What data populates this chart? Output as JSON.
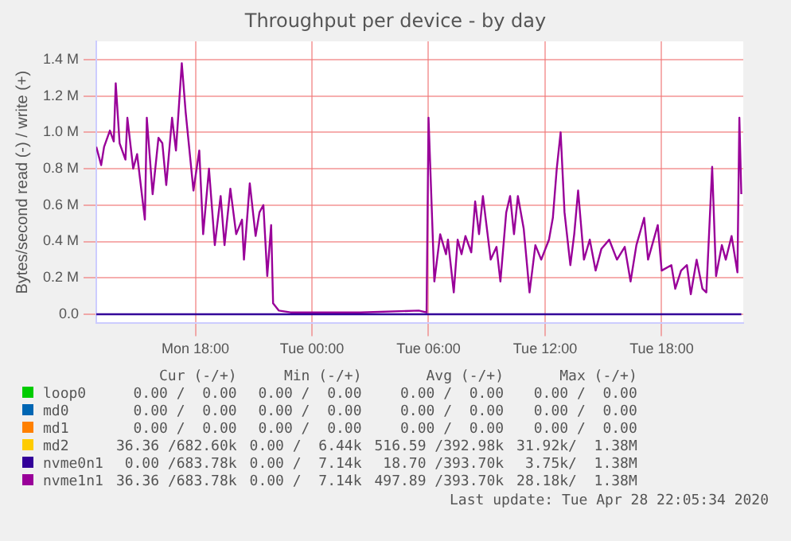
{
  "chart_data": {
    "type": "line",
    "title": "Throughput per device - by day",
    "ylabel": "Bytes/second read (-) / write (+)",
    "xlim": [
      "2020-04-27T12:54",
      "2020-04-28T22:12"
    ],
    "xticks": [
      {
        "value": "2020-04-27T18:00",
        "label": "Mon 18:00"
      },
      {
        "value": "2020-04-28T00:00",
        "label": "Tue 00:00"
      },
      {
        "value": "2020-04-28T06:00",
        "label": "Tue 06:00"
      },
      {
        "value": "2020-04-28T12:00",
        "label": "Tue 12:00"
      },
      {
        "value": "2020-04-28T18:00",
        "label": "Tue 18:00"
      }
    ],
    "ylim": [
      -50000,
      1500000
    ],
    "yticks": [
      {
        "value": 0,
        "label": "0.0"
      },
      {
        "value": 200000,
        "label": "0.2 M"
      },
      {
        "value": 400000,
        "label": "0.4 M"
      },
      {
        "value": 600000,
        "label": "0.6 M"
      },
      {
        "value": 800000,
        "label": "0.8 M"
      },
      {
        "value": 1000000,
        "label": "1.0 M"
      },
      {
        "value": 1200000,
        "label": "1.2 M"
      },
      {
        "value": 1400000,
        "label": "1.4 M"
      }
    ],
    "grid": true,
    "legend": "bottom",
    "marker": "none",
    "line_style": "solid",
    "series": [
      {
        "name": "loop0",
        "color": "#00cc00"
      },
      {
        "name": "md0",
        "color": "#0066b3"
      },
      {
        "name": "md1",
        "color": "#ff8000"
      },
      {
        "name": "md2",
        "color": "#ffcc00"
      },
      {
        "name": "nvme0n1",
        "color": "#330099",
        "x": [
          "2020-04-27T12:54",
          "2020-04-28T22:06"
        ],
        "values": [
          0,
          0
        ]
      },
      {
        "name": "nvme1n1",
        "color": "#990099",
        "x": [
          "2020-04-27T12:54",
          "2020-04-27T13:09",
          "2020-04-27T13:18",
          "2020-04-27T13:36",
          "2020-04-27T13:48",
          "2020-04-27T13:54",
          "2020-04-27T14:06",
          "2020-04-27T14:24",
          "2020-04-27T14:30",
          "2020-04-27T14:48",
          "2020-04-27T15:00",
          "2020-04-27T15:24",
          "2020-04-27T15:30",
          "2020-04-27T15:48",
          "2020-04-27T16:06",
          "2020-04-27T16:18",
          "2020-04-27T16:30",
          "2020-04-27T16:48",
          "2020-04-27T17:00",
          "2020-04-27T17:18",
          "2020-04-27T17:30",
          "2020-04-27T17:54",
          "2020-04-27T18:12",
          "2020-04-27T18:24",
          "2020-04-27T18:42",
          "2020-04-27T19:00",
          "2020-04-27T19:18",
          "2020-04-27T19:30",
          "2020-04-27T19:48",
          "2020-04-27T20:06",
          "2020-04-27T20:24",
          "2020-04-27T20:30",
          "2020-04-27T20:48",
          "2020-04-27T21:06",
          "2020-04-27T21:18",
          "2020-04-27T21:30",
          "2020-04-27T21:42",
          "2020-04-27T21:54",
          "2020-04-27T22:00",
          "2020-04-27T22:18",
          "2020-04-27T22:54",
          "2020-04-28T02:30",
          "2020-04-28T05:30",
          "2020-04-28T05:54",
          "2020-04-28T06:00",
          "2020-04-28T06:18",
          "2020-04-28T06:36",
          "2020-04-28T06:54",
          "2020-04-28T07:00",
          "2020-04-28T07:18",
          "2020-04-28T07:30",
          "2020-04-28T07:42",
          "2020-04-28T07:54",
          "2020-04-28T08:12",
          "2020-04-28T08:24",
          "2020-04-28T08:36",
          "2020-04-28T08:48",
          "2020-04-28T09:12",
          "2020-04-28T09:30",
          "2020-04-28T09:42",
          "2020-04-28T10:00",
          "2020-04-28T10:12",
          "2020-04-28T10:24",
          "2020-04-28T10:36",
          "2020-04-28T10:54",
          "2020-04-28T11:12",
          "2020-04-28T11:30",
          "2020-04-28T11:48",
          "2020-04-28T12:12",
          "2020-04-28T12:24",
          "2020-04-28T12:36",
          "2020-04-28T12:48",
          "2020-04-28T13:00",
          "2020-04-28T13:18",
          "2020-04-28T13:30",
          "2020-04-28T13:42",
          "2020-04-28T14:00",
          "2020-04-28T14:18",
          "2020-04-28T14:36",
          "2020-04-28T14:54",
          "2020-04-28T15:18",
          "2020-04-28T15:42",
          "2020-04-28T16:06",
          "2020-04-28T16:24",
          "2020-04-28T16:42",
          "2020-04-28T17:06",
          "2020-04-28T17:18",
          "2020-04-28T17:48",
          "2020-04-28T18:00",
          "2020-04-28T18:30",
          "2020-04-28T18:42",
          "2020-04-28T19:00",
          "2020-04-28T19:18",
          "2020-04-28T19:30",
          "2020-04-28T19:48",
          "2020-04-28T20:06",
          "2020-04-28T20:18",
          "2020-04-28T20:36",
          "2020-04-28T20:48",
          "2020-04-28T21:06",
          "2020-04-28T21:18",
          "2020-04-28T21:36",
          "2020-04-28T21:54",
          "2020-04-28T22:00",
          "2020-04-28T22:06"
        ],
        "values": [
          920000,
          820000,
          920000,
          1010000,
          950000,
          1270000,
          940000,
          850000,
          1080000,
          800000,
          880000,
          520000,
          1080000,
          660000,
          970000,
          940000,
          710000,
          1080000,
          900000,
          1380000,
          1110000,
          680000,
          900000,
          440000,
          800000,
          380000,
          650000,
          380000,
          690000,
          440000,
          520000,
          300000,
          720000,
          430000,
          560000,
          600000,
          210000,
          490000,
          60000,
          20000,
          10000,
          10000,
          20000,
          10000,
          1080000,
          180000,
          440000,
          330000,
          410000,
          120000,
          410000,
          330000,
          430000,
          340000,
          620000,
          440000,
          650000,
          300000,
          370000,
          180000,
          560000,
          650000,
          440000,
          650000,
          470000,
          120000,
          380000,
          300000,
          410000,
          530000,
          800000,
          1000000,
          560000,
          270000,
          440000,
          680000,
          300000,
          410000,
          240000,
          360000,
          410000,
          300000,
          370000,
          180000,
          380000,
          530000,
          300000,
          490000,
          240000,
          270000,
          140000,
          240000,
          270000,
          110000,
          300000,
          140000,
          120000,
          810000,
          210000,
          380000,
          300000,
          430000,
          230000,
          1080000,
          660000
        ]
      }
    ],
    "annotations": [
      "Cur (-/+)",
      "Min (-/+)",
      "Avg (-/+)",
      "Max (-/+)",
      "0.00 /  0.00",
      "0.00 /  0.00",
      "0.00 /  0.00",
      "0.00 /  0.00",
      "0.00 /  0.00",
      "0.00 /  0.00",
      "0.00 /  0.00",
      "0.00 /  0.00",
      "0.00 /  0.00",
      "0.00 /  0.00",
      "0.00 /  0.00",
      "0.00 /  0.00",
      "36.36 /682.60k",
      "0.00 /  6.44k",
      "516.59 /392.98k",
      "31.92k/  1.38M",
      "0.00 /683.78k",
      "0.00 /  7.14k",
      "18.70 /393.70k",
      "3.75k/  1.38M",
      "36.36 /683.78k",
      "0.00 /  7.14k",
      "497.89 /393.70k",
      "28.18k/  1.38M",
      "Last update: Tue Apr 28 22:05:34 2020"
    ]
  }
}
